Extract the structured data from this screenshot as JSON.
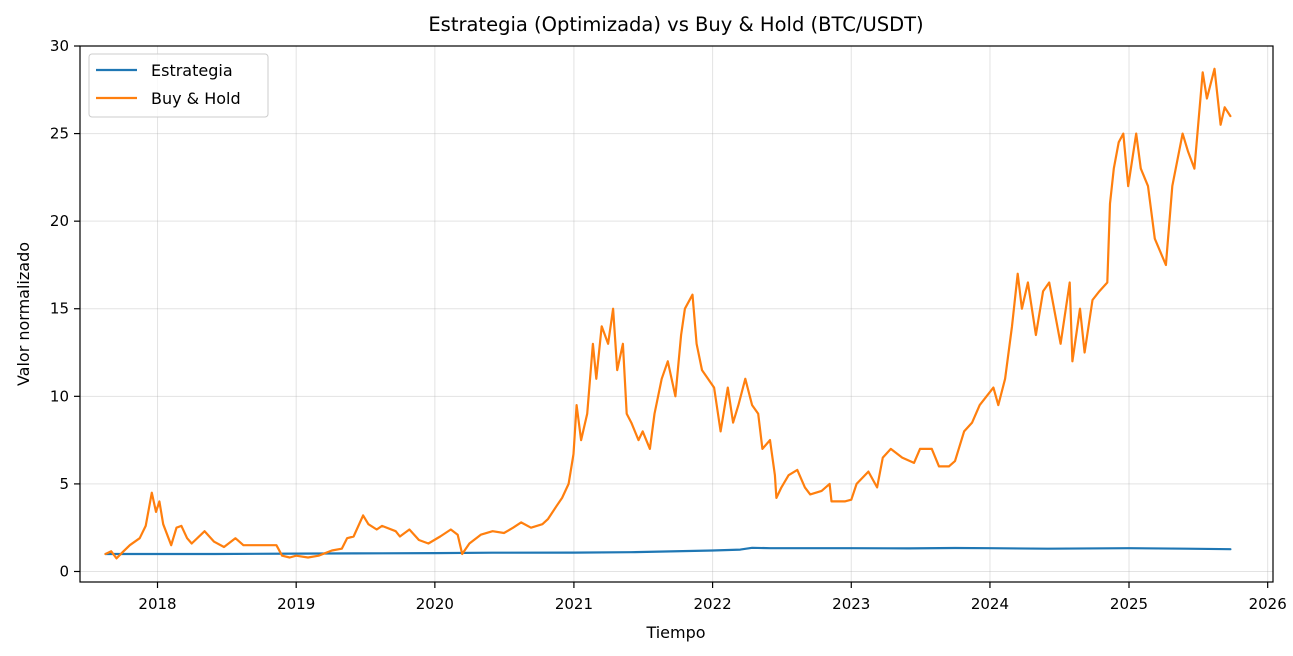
{
  "chart_data": {
    "type": "line",
    "title": "Estrategia (Optimizada) vs Buy & Hold (BTC/USDT)",
    "xlabel": "Tiempo",
    "ylabel": "Valor normalizado",
    "xlim": [
      "2017-06-11",
      "2026-01-15"
    ],
    "ylim": [
      -0.6,
      30
    ],
    "xticks": [
      "2018",
      "2019",
      "2020",
      "2021",
      "2022",
      "2023",
      "2024",
      "2025",
      "2026"
    ],
    "yticks": [
      "0",
      "5",
      "10",
      "15",
      "20",
      "25",
      "30"
    ],
    "grid": true,
    "legend_position": "top-left",
    "series": [
      {
        "name": "Estrategia",
        "color": "#1f77b4",
        "points": [
          [
            "2017-08-17",
            1.0
          ],
          [
            "2018-01-01",
            1.0
          ],
          [
            "2018-06-01",
            1.0
          ],
          [
            "2019-01-01",
            1.02
          ],
          [
            "2019-06-01",
            1.03
          ],
          [
            "2020-01-01",
            1.05
          ],
          [
            "2020-06-01",
            1.07
          ],
          [
            "2021-01-01",
            1.08
          ],
          [
            "2021-06-01",
            1.1
          ],
          [
            "2022-01-01",
            1.2
          ],
          [
            "2022-03-15",
            1.25
          ],
          [
            "2022-04-15",
            1.35
          ],
          [
            "2022-06-01",
            1.33
          ],
          [
            "2023-01-01",
            1.33
          ],
          [
            "2023-06-01",
            1.32
          ],
          [
            "2023-10-01",
            1.34
          ],
          [
            "2024-01-01",
            1.33
          ],
          [
            "2024-06-01",
            1.3
          ],
          [
            "2025-01-01",
            1.33
          ],
          [
            "2025-06-01",
            1.3
          ],
          [
            "2025-09-25",
            1.27
          ]
        ]
      },
      {
        "name": "Buy & Hold",
        "color": "#ff7f0e",
        "points": [
          [
            "2017-08-17",
            1.0
          ],
          [
            "2017-09-01",
            1.15
          ],
          [
            "2017-09-15",
            0.75
          ],
          [
            "2017-10-01",
            1.1
          ],
          [
            "2017-10-20",
            1.5
          ],
          [
            "2017-11-15",
            1.9
          ],
          [
            "2017-12-01",
            2.6
          ],
          [
            "2017-12-17",
            4.5
          ],
          [
            "2017-12-28",
            3.4
          ],
          [
            "2018-01-06",
            4.0
          ],
          [
            "2018-01-16",
            2.7
          ],
          [
            "2018-02-06",
            1.5
          ],
          [
            "2018-02-20",
            2.5
          ],
          [
            "2018-03-05",
            2.6
          ],
          [
            "2018-03-20",
            1.9
          ],
          [
            "2018-04-01",
            1.6
          ],
          [
            "2018-05-05",
            2.3
          ],
          [
            "2018-05-30",
            1.7
          ],
          [
            "2018-06-25",
            1.4
          ],
          [
            "2018-07-25",
            1.9
          ],
          [
            "2018-08-15",
            1.5
          ],
          [
            "2018-09-15",
            1.5
          ],
          [
            "2018-10-15",
            1.5
          ],
          [
            "2018-11-10",
            1.5
          ],
          [
            "2018-11-25",
            0.9
          ],
          [
            "2018-12-15",
            0.8
          ],
          [
            "2019-01-01",
            0.9
          ],
          [
            "2019-02-01",
            0.8
          ],
          [
            "2019-03-01",
            0.9
          ],
          [
            "2019-04-05",
            1.2
          ],
          [
            "2019-05-01",
            1.3
          ],
          [
            "2019-05-15",
            1.9
          ],
          [
            "2019-06-01",
            2.0
          ],
          [
            "2019-06-26",
            3.2
          ],
          [
            "2019-07-10",
            2.7
          ],
          [
            "2019-08-01",
            2.4
          ],
          [
            "2019-08-15",
            2.6
          ],
          [
            "2019-09-20",
            2.3
          ],
          [
            "2019-10-01",
            2.0
          ],
          [
            "2019-10-26",
            2.4
          ],
          [
            "2019-11-20",
            1.8
          ],
          [
            "2019-12-15",
            1.6
          ],
          [
            "2020-01-15",
            2.0
          ],
          [
            "2020-02-12",
            2.4
          ],
          [
            "2020-03-01",
            2.1
          ],
          [
            "2020-03-13",
            1.0
          ],
          [
            "2020-04-01",
            1.6
          ],
          [
            "2020-05-01",
            2.1
          ],
          [
            "2020-06-01",
            2.3
          ],
          [
            "2020-07-01",
            2.2
          ],
          [
            "2020-07-25",
            2.5
          ],
          [
            "2020-08-15",
            2.8
          ],
          [
            "2020-09-10",
            2.5
          ],
          [
            "2020-10-10",
            2.7
          ],
          [
            "2020-10-25",
            3.0
          ],
          [
            "2020-11-15",
            3.7
          ],
          [
            "2020-12-01",
            4.2
          ],
          [
            "2020-12-18",
            5.0
          ],
          [
            "2020-12-31",
            6.7
          ],
          [
            "2021-01-08",
            9.5
          ],
          [
            "2021-01-20",
            7.5
          ],
          [
            "2021-02-05",
            9.0
          ],
          [
            "2021-02-20",
            13.0
          ],
          [
            "2021-03-01",
            11.0
          ],
          [
            "2021-03-15",
            14.0
          ],
          [
            "2021-04-01",
            13.0
          ],
          [
            "2021-04-14",
            15.0
          ],
          [
            "2021-04-25",
            11.5
          ],
          [
            "2021-05-10",
            13.0
          ],
          [
            "2021-05-20",
            9.0
          ],
          [
            "2021-06-01",
            8.5
          ],
          [
            "2021-06-20",
            7.5
          ],
          [
            "2021-07-01",
            8.0
          ],
          [
            "2021-07-20",
            7.0
          ],
          [
            "2021-08-01",
            9.0
          ],
          [
            "2021-08-20",
            11.0
          ],
          [
            "2021-09-05",
            12.0
          ],
          [
            "2021-09-25",
            10.0
          ],
          [
            "2021-10-10",
            13.5
          ],
          [
            "2021-10-20",
            15.0
          ],
          [
            "2021-11-09",
            15.8
          ],
          [
            "2021-11-20",
            13.0
          ],
          [
            "2021-12-04",
            11.5
          ],
          [
            "2021-12-20",
            11.0
          ],
          [
            "2022-01-05",
            10.5
          ],
          [
            "2022-01-22",
            8.0
          ],
          [
            "2022-02-10",
            10.5
          ],
          [
            "2022-02-24",
            8.5
          ],
          [
            "2022-03-10",
            9.5
          ],
          [
            "2022-03-28",
            11.0
          ],
          [
            "2022-04-15",
            9.5
          ],
          [
            "2022-05-01",
            9.0
          ],
          [
            "2022-05-12",
            7.0
          ],
          [
            "2022-06-01",
            7.5
          ],
          [
            "2022-06-14",
            5.5
          ],
          [
            "2022-06-18",
            4.2
          ],
          [
            "2022-07-01",
            4.8
          ],
          [
            "2022-07-20",
            5.5
          ],
          [
            "2022-08-12",
            5.8
          ],
          [
            "2022-09-01",
            4.8
          ],
          [
            "2022-09-15",
            4.4
          ],
          [
            "2022-10-15",
            4.6
          ],
          [
            "2022-11-05",
            5.0
          ],
          [
            "2022-11-10",
            4.0
          ],
          [
            "2022-12-15",
            4.0
          ],
          [
            "2023-01-01",
            4.1
          ],
          [
            "2023-01-15",
            5.0
          ],
          [
            "2023-02-15",
            5.7
          ],
          [
            "2023-03-10",
            4.8
          ],
          [
            "2023-03-25",
            6.5
          ],
          [
            "2023-04-15",
            7.0
          ],
          [
            "2023-05-15",
            6.5
          ],
          [
            "2023-06-15",
            6.2
          ],
          [
            "2023-07-01",
            7.0
          ],
          [
            "2023-08-01",
            7.0
          ],
          [
            "2023-08-20",
            6.0
          ],
          [
            "2023-09-15",
            6.0
          ],
          [
            "2023-10-01",
            6.3
          ],
          [
            "2023-10-25",
            8.0
          ],
          [
            "2023-11-15",
            8.5
          ],
          [
            "2023-12-05",
            9.5
          ],
          [
            "2024-01-10",
            10.5
          ],
          [
            "2024-01-23",
            9.5
          ],
          [
            "2024-02-10",
            11.0
          ],
          [
            "2024-02-28",
            14.0
          ],
          [
            "2024-03-14",
            17.0
          ],
          [
            "2024-03-25",
            15.0
          ],
          [
            "2024-04-10",
            16.5
          ],
          [
            "2024-05-01",
            13.5
          ],
          [
            "2024-05-20",
            16.0
          ],
          [
            "2024-06-05",
            16.5
          ],
          [
            "2024-07-05",
            13.0
          ],
          [
            "2024-07-29",
            16.5
          ],
          [
            "2024-08-05",
            12.0
          ],
          [
            "2024-08-25",
            15.0
          ],
          [
            "2024-09-06",
            12.5
          ],
          [
            "2024-09-27",
            15.5
          ],
          [
            "2024-10-15",
            16.0
          ],
          [
            "2024-11-05",
            16.5
          ],
          [
            "2024-11-12",
            21.0
          ],
          [
            "2024-11-22",
            23.0
          ],
          [
            "2024-12-05",
            24.5
          ],
          [
            "2024-12-17",
            25.0
          ],
          [
            "2024-12-30",
            22.0
          ],
          [
            "2025-01-20",
            25.0
          ],
          [
            "2025-02-01",
            23.0
          ],
          [
            "2025-02-20",
            22.0
          ],
          [
            "2025-03-10",
            19.0
          ],
          [
            "2025-04-08",
            17.5
          ],
          [
            "2025-04-25",
            22.0
          ],
          [
            "2025-05-22",
            25.0
          ],
          [
            "2025-06-05",
            24.0
          ],
          [
            "2025-06-22",
            23.0
          ],
          [
            "2025-07-14",
            28.5
          ],
          [
            "2025-07-25",
            27.0
          ],
          [
            "2025-08-14",
            28.7
          ],
          [
            "2025-08-30",
            25.5
          ],
          [
            "2025-09-10",
            26.5
          ],
          [
            "2025-09-25",
            26.0
          ]
        ]
      }
    ]
  }
}
